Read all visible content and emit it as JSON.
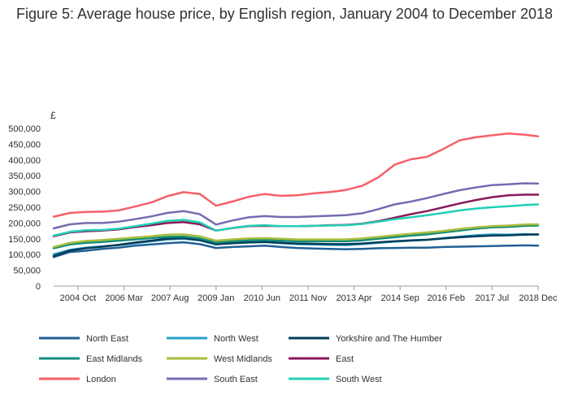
{
  "chart_data": {
    "type": "line",
    "title": "Figure 5: Average house price, by English region, January 2004 to December 2018",
    "ylabel": "£",
    "xlabel": "",
    "ylim": [
      0,
      500000
    ],
    "xlim": [
      "2004-01",
      "2018-12"
    ],
    "grid": false,
    "legend_position": "bottom",
    "y_ticks": [
      {
        "value": 0,
        "label": "0"
      },
      {
        "value": 50000,
        "label": "50,000"
      },
      {
        "value": 100000,
        "label": "100,000"
      },
      {
        "value": 150000,
        "label": "150,000"
      },
      {
        "value": 200000,
        "label": "200,000"
      },
      {
        "value": 250000,
        "label": "250,000"
      },
      {
        "value": 300000,
        "label": "300,000"
      },
      {
        "value": 350000,
        "label": "350,000"
      },
      {
        "value": 400000,
        "label": "400,000"
      },
      {
        "value": 450000,
        "label": "450,000"
      },
      {
        "value": 500000,
        "label": "500,000"
      }
    ],
    "x_ticks": [
      {
        "value": "2004-10",
        "label": "2004 Oct"
      },
      {
        "value": "2006-03",
        "label": "2006 Mar"
      },
      {
        "value": "2007-08",
        "label": "2007 Aug"
      },
      {
        "value": "2009-01",
        "label": "2009 Jan"
      },
      {
        "value": "2010-06",
        "label": "2010 Jun"
      },
      {
        "value": "2011-11",
        "label": "2011 Nov"
      },
      {
        "value": "2013-04",
        "label": "2013 Apr"
      },
      {
        "value": "2014-09",
        "label": "2014 Sep"
      },
      {
        "value": "2016-02",
        "label": "2016 Feb"
      },
      {
        "value": "2017-07",
        "label": "2017 Jul"
      },
      {
        "value": "2018-12",
        "label": "2018 Dec"
      }
    ],
    "x": [
      "2004-01",
      "2004-07",
      "2005-01",
      "2005-07",
      "2006-01",
      "2006-07",
      "2007-01",
      "2007-07",
      "2008-01",
      "2008-07",
      "2009-01",
      "2009-07",
      "2010-01",
      "2010-07",
      "2011-01",
      "2011-07",
      "2012-01",
      "2012-07",
      "2013-01",
      "2013-07",
      "2014-01",
      "2014-07",
      "2015-01",
      "2015-07",
      "2016-01",
      "2016-07",
      "2017-01",
      "2017-07",
      "2018-01",
      "2018-07",
      "2018-12"
    ],
    "series": [
      {
        "name": "North East",
        "color": "#206095",
        "values": [
          92000,
          108000,
          112000,
          118000,
          122000,
          128000,
          132000,
          136000,
          139000,
          133000,
          121000,
          124000,
          126000,
          128000,
          124000,
          121000,
          119000,
          118000,
          117000,
          118000,
          120000,
          121000,
          122000,
          122000,
          124000,
          125000,
          126000,
          127000,
          128000,
          129000,
          128000
        ]
      },
      {
        "name": "North West",
        "color": "#27a0cc",
        "values": [
          101000,
          115000,
          122000,
          126000,
          130000,
          136000,
          142000,
          148000,
          150000,
          145000,
          132000,
          136000,
          138000,
          140000,
          136000,
          133000,
          132000,
          131000,
          130000,
          133000,
          137000,
          141000,
          144000,
          147000,
          152000,
          157000,
          161000,
          164000,
          163000,
          165000,
          163000
        ]
      },
      {
        "name": "Yorkshire and The Humber",
        "color": "#003c57",
        "values": [
          95000,
          113000,
          120000,
          125000,
          131000,
          138000,
          144000,
          150000,
          152000,
          146000,
          133000,
          136000,
          139000,
          140000,
          137000,
          135000,
          134000,
          133000,
          133000,
          135000,
          139000,
          142000,
          145000,
          147000,
          151000,
          155000,
          158000,
          160000,
          161000,
          163000,
          164000
        ]
      },
      {
        "name": "East Midlands",
        "color": "#118c7b",
        "values": [
          120000,
          132000,
          137000,
          140000,
          144000,
          148000,
          152000,
          156000,
          157000,
          151000,
          138000,
          142000,
          145000,
          146000,
          144000,
          142000,
          142000,
          142000,
          142000,
          145000,
          150000,
          155000,
          160000,
          164000,
          170000,
          176000,
          182000,
          186000,
          188000,
          191000,
          192000
        ]
      },
      {
        "name": "West Midlands",
        "color": "#a8bd3a",
        "values": [
          124000,
          137000,
          143000,
          146000,
          150000,
          154000,
          158000,
          163000,
          164000,
          158000,
          144000,
          148000,
          151000,
          152000,
          150000,
          148000,
          148000,
          148000,
          148000,
          151000,
          156000,
          161000,
          166000,
          170000,
          175000,
          181000,
          186000,
          190000,
          192000,
          195000,
          196000
        ]
      },
      {
        "name": "East",
        "color": "#871a5b",
        "values": [
          158000,
          170000,
          174000,
          176000,
          180000,
          187000,
          193000,
          200000,
          203000,
          196000,
          176000,
          184000,
          190000,
          191000,
          190000,
          190000,
          191000,
          193000,
          194000,
          198000,
          206000,
          217000,
          228000,
          238000,
          250000,
          262000,
          273000,
          282000,
          288000,
          290000,
          290000
        ]
      },
      {
        "name": "London",
        "color": "#f66068",
        "values": [
          220000,
          232000,
          235000,
          236000,
          240000,
          252000,
          265000,
          285000,
          298000,
          292000,
          255000,
          268000,
          283000,
          292000,
          286000,
          288000,
          294000,
          298000,
          305000,
          318000,
          345000,
          385000,
          402000,
          410000,
          435000,
          462000,
          472000,
          478000,
          484000,
          480000,
          475000
        ]
      },
      {
        "name": "South East",
        "color": "#746cb1",
        "values": [
          183000,
          196000,
          200000,
          200000,
          204000,
          212000,
          221000,
          232000,
          238000,
          228000,
          195000,
          208000,
          218000,
          222000,
          219000,
          219000,
          221000,
          223000,
          225000,
          231000,
          244000,
          259000,
          268000,
          279000,
          292000,
          304000,
          313000,
          320000,
          323000,
          326000,
          325000
        ]
      },
      {
        "name": "South West",
        "color": "#22d0b6",
        "values": [
          160000,
          172000,
          177000,
          178000,
          182000,
          190000,
          198000,
          207000,
          210000,
          202000,
          176000,
          184000,
          191000,
          193000,
          190000,
          190000,
          191000,
          192000,
          193000,
          197000,
          204000,
          212000,
          218000,
          225000,
          232000,
          240000,
          246000,
          250000,
          253000,
          257000,
          259000
        ]
      }
    ]
  }
}
